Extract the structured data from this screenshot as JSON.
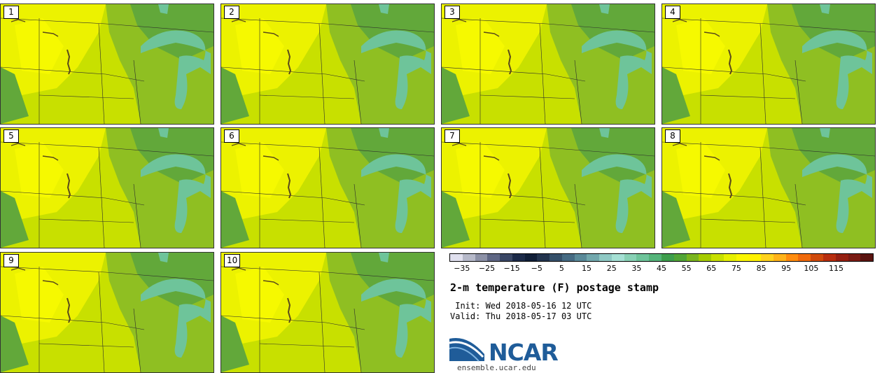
{
  "panels": [
    {
      "label": "1"
    },
    {
      "label": "2"
    },
    {
      "label": "3"
    },
    {
      "label": "4"
    },
    {
      "label": "5"
    },
    {
      "label": "6"
    },
    {
      "label": "7"
    },
    {
      "label": "8"
    },
    {
      "label": "9"
    },
    {
      "label": "10"
    }
  ],
  "colorbar": {
    "colors": [
      "#e0e0ee",
      "#b6b9c9",
      "#8c91a6",
      "#5f6784",
      "#3a4765",
      "#1c2a48",
      "#101e36",
      "#22334d",
      "#35506a",
      "#466b83",
      "#5a8a99",
      "#72a8ad",
      "#8fc9c4",
      "#a5e0d4",
      "#88d1b5",
      "#6ec49a",
      "#55b47a",
      "#3e9e4c",
      "#52a536",
      "#7ab51f",
      "#a6cc00",
      "#c8e000",
      "#e6f000",
      "#faf600",
      "#fff200",
      "#ffd21e",
      "#ffb319",
      "#ff8c0e",
      "#f06a0c",
      "#d04a0c",
      "#b82e0f",
      "#962012",
      "#7a1b14",
      "#5a1410"
    ],
    "tick_labels": [
      "−35",
      "−25",
      "−15",
      "−5",
      "5",
      "15",
      "25",
      "35",
      "45",
      "55",
      "65",
      "75",
      "85",
      "95",
      "105",
      "115"
    ]
  },
  "title": "2-m temperature (F) postage stamp",
  "init": " Init: Wed 2018-05-16 12 UTC",
  "valid": "Valid: Thu 2018-05-17 03 UTC",
  "logo_text": "NCAR",
  "site": "ensemble.ucar.edu",
  "colors": {
    "warm": "#f2f500",
    "mild": "#c8e000",
    "cool": "#8fbf22",
    "cooler": "#62a83a",
    "lake": "#6ec49a",
    "brand": "#1f5c99"
  }
}
